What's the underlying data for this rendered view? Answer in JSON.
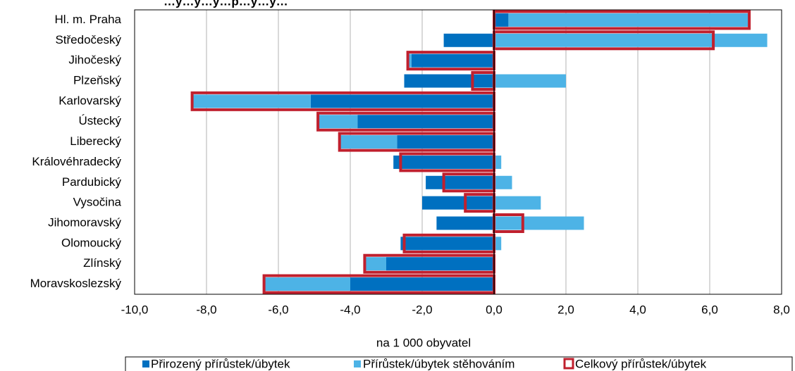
{
  "chart_data": {
    "type": "bar",
    "title": "…y…y…y…p…y…y…",
    "xlabel": "na 1 000 obyvatel",
    "xlim": [
      -10,
      8
    ],
    "x_ticks": [
      -10,
      -8,
      -6,
      -4,
      -2,
      0,
      2,
      4,
      6,
      8
    ],
    "x_tick_labels": [
      "-10,0",
      "-8,0",
      "-6,0",
      "-4,0",
      "-2,0",
      "0,0",
      "2,0",
      "4,0",
      "6,0",
      "8,0"
    ],
    "grid": "vertical",
    "legend_position": "bottom",
    "categories": [
      "Hl. m. Praha",
      "Středočeský",
      "Jihočeský",
      "Plzeňský",
      "Karlovarský",
      "Ústecký",
      "Liberecký",
      "Královéhradecký",
      "Pardubický",
      "Vysočina",
      "Jihomoravský",
      "Olomoucký",
      "Zlínský",
      "Moravskoslezský"
    ],
    "series": [
      {
        "name": "Přirozený přírůstek/úbytek",
        "color": "#0070c0",
        "style": "bar",
        "values": [
          0.4,
          -1.4,
          -2.3,
          -2.5,
          -5.1,
          -3.8,
          -2.7,
          -2.8,
          -1.9,
          -2.0,
          -1.6,
          -2.6,
          -3.0,
          -4.0
        ]
      },
      {
        "name": "Přírůstek/úbytek stěhováním",
        "color": "#4db3e6",
        "style": "bar",
        "values": [
          6.7,
          7.6,
          -0.1,
          2.0,
          -3.3,
          -1.1,
          -1.6,
          0.2,
          0.5,
          1.3,
          2.5,
          0.2,
          -0.6,
          -2.4
        ]
      },
      {
        "name": "Celkový přírůstek/úbytek",
        "color": "#c0202e",
        "style": "outline",
        "values": [
          7.1,
          6.1,
          -2.4,
          -0.6,
          -8.4,
          -4.9,
          -4.3,
          -2.6,
          -1.4,
          -0.8,
          0.8,
          -2.5,
          -3.6,
          -6.4
        ]
      }
    ]
  }
}
